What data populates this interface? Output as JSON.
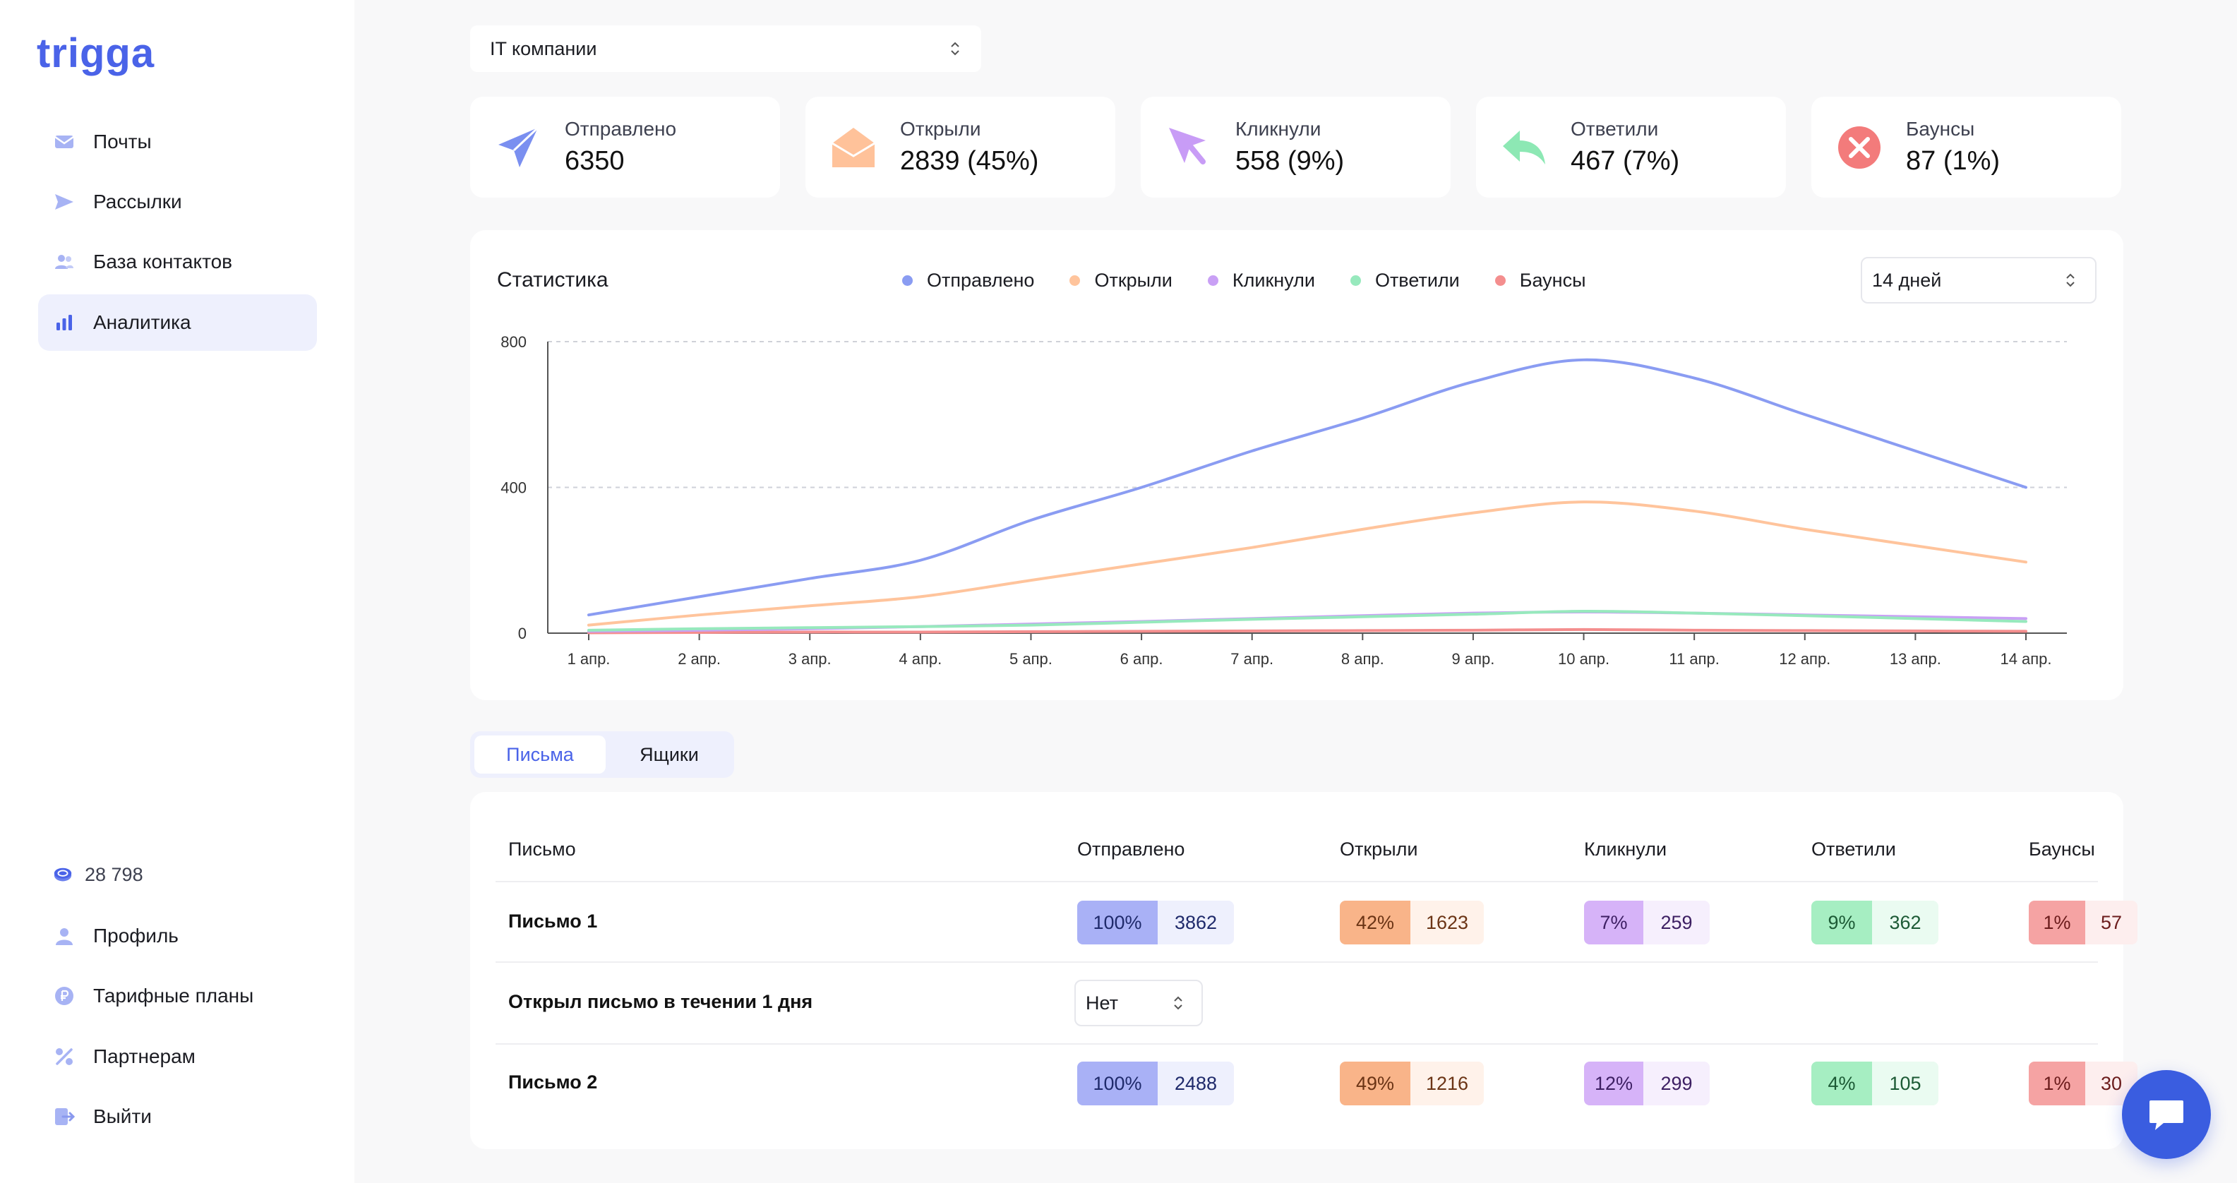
{
  "brand": {
    "logo_text": "trigga",
    "accent": "#4a63e8"
  },
  "sidebar": {
    "items": [
      {
        "label": "Почты",
        "icon": "mail-icon",
        "active": false
      },
      {
        "label": "Рассылки",
        "icon": "send-icon",
        "active": false
      },
      {
        "label": "База контактов",
        "icon": "contacts-icon",
        "active": false
      },
      {
        "label": "Аналитика",
        "icon": "analytics-icon",
        "active": true
      }
    ],
    "balance": "28 798",
    "bottom_items": [
      {
        "label": "Профиль",
        "icon": "profile-icon"
      },
      {
        "label": "Тарифные планы",
        "icon": "ruble-icon"
      },
      {
        "label": "Партнерам",
        "icon": "percent-icon"
      },
      {
        "label": "Выйти",
        "icon": "logout-icon"
      }
    ]
  },
  "filter": {
    "company": "IT компании"
  },
  "stats": [
    {
      "label": "Отправлено",
      "value": "6350",
      "color": "#7a8ff0",
      "icon": "paper-plane-icon"
    },
    {
      "label": "Открыли",
      "value": "2839 (45%)",
      "color": "#ffc29a",
      "icon": "open-envelope-icon"
    },
    {
      "label": "Кликнули",
      "value": "558 (9%)",
      "color": "#c89cf6",
      "icon": "cursor-icon"
    },
    {
      "label": "Ответили",
      "value": "467 (7%)",
      "color": "#8de8b4",
      "icon": "reply-icon"
    },
    {
      "label": "Баунсы",
      "value": "87 (1%)",
      "color": "#f37b7b",
      "icon": "x-circle-icon"
    }
  ],
  "chart": {
    "title": "Статистика",
    "period": "14 дней"
  },
  "chart_data": {
    "type": "line",
    "x": [
      "1 апр.",
      "2 апр.",
      "3 апр.",
      "4 апр.",
      "5 апр.",
      "6 апр.",
      "7 апр.",
      "8 апр.",
      "9 апр.",
      "10 апр.",
      "11 апр.",
      "12 апр.",
      "13 апр.",
      "14 апр."
    ],
    "yticks": [
      "0",
      "400",
      "800"
    ],
    "ylim": [
      0,
      800
    ],
    "grid": true,
    "legend_position": "top",
    "series": [
      {
        "name": "Отправлено",
        "color": "#8a9cf2",
        "values": [
          50,
          100,
          150,
          200,
          310,
          400,
          500,
          590,
          690,
          750,
          700,
          600,
          500,
          400
        ]
      },
      {
        "name": "Открыли",
        "color": "#ffc49c",
        "values": [
          22,
          50,
          75,
          100,
          145,
          190,
          235,
          285,
          330,
          360,
          335,
          285,
          240,
          195
        ]
      },
      {
        "name": "Кликнули",
        "color": "#c9a0f5",
        "values": [
          5,
          8,
          12,
          18,
          25,
          32,
          40,
          48,
          55,
          58,
          55,
          50,
          45,
          40
        ]
      },
      {
        "name": "Ответили",
        "color": "#97e9bd",
        "values": [
          8,
          12,
          15,
          18,
          22,
          30,
          38,
          45,
          52,
          60,
          55,
          48,
          40,
          32
        ]
      },
      {
        "name": "Баунсы",
        "color": "#f48e8e",
        "values": [
          1,
          2,
          3,
          3,
          4,
          5,
          6,
          7,
          8,
          10,
          8,
          7,
          6,
          5
        ]
      }
    ]
  },
  "tabs": [
    {
      "label": "Письма",
      "active": true
    },
    {
      "label": "Ящики",
      "active": false
    }
  ],
  "table": {
    "headers": [
      "Письмо",
      "Отправлено",
      "Открыли",
      "Кликнули",
      "Ответили",
      "Баунсы"
    ],
    "rows": [
      {
        "name": "Письмо 1",
        "cells": [
          {
            "pct": "100%",
            "count": "3862"
          },
          {
            "pct": "42%",
            "count": "1623"
          },
          {
            "pct": "7%",
            "count": "259"
          },
          {
            "pct": "9%",
            "count": "362"
          },
          {
            "pct": "1%",
            "count": "57"
          }
        ]
      },
      {
        "name": "Открыл письмо в течении 1 дня",
        "select_value": "Нет"
      },
      {
        "name": "Письмо 2",
        "cells": [
          {
            "pct": "100%",
            "count": "2488"
          },
          {
            "pct": "49%",
            "count": "1216"
          },
          {
            "pct": "12%",
            "count": "299"
          },
          {
            "pct": "4%",
            "count": "105"
          },
          {
            "pct": "1%",
            "count": "30"
          }
        ]
      }
    ]
  },
  "pill_colors": [
    {
      "pct_bg": "#a9b1f6",
      "cnt_bg": "#eef0fd",
      "text": "#1f2a6b"
    },
    {
      "pct_bg": "#f9b489",
      "cnt_bg": "#fff2ea",
      "text": "#6b3415"
    },
    {
      "pct_bg": "#d6b3f8",
      "cnt_bg": "#f6effd",
      "text": "#3d1f63"
    },
    {
      "pct_bg": "#a6eec2",
      "cnt_bg": "#eafbf1",
      "text": "#1c5a35"
    },
    {
      "pct_bg": "#f5a3a3",
      "cnt_bg": "#fdeeee",
      "text": "#6b1c1c"
    }
  ]
}
